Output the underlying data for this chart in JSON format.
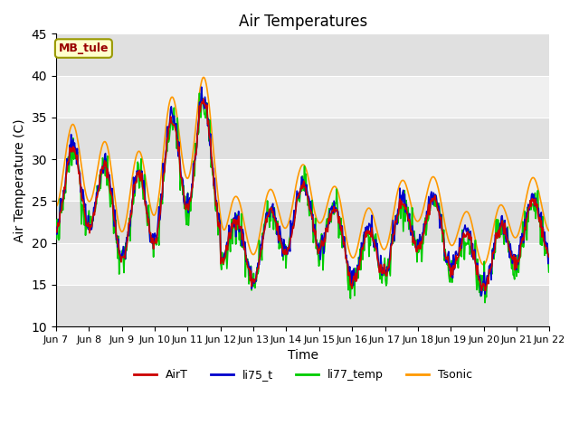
{
  "title": "Air Temperatures",
  "xlabel": "Time",
  "ylabel": "Air Temperature (C)",
  "ylim": [
    10,
    45
  ],
  "annotation_text": "MB_tule",
  "annotation_box_color": "#ffffcc",
  "annotation_text_color": "#990000",
  "annotation_border_color": "#999900",
  "series_colors": {
    "AirT": "#cc0000",
    "li75_t": "#0000cc",
    "li77_temp": "#00cc00",
    "Tsonic": "#ff9900"
  },
  "x_tick_labels": [
    "Jun 7",
    "Jun 8",
    "Jun 9",
    "Jun 10",
    "Jun 11",
    "Jun 12",
    "Jun 13",
    "Jun 14",
    "Jun 15",
    "Jun 16",
    "Jun 17",
    "Jun 18",
    "Jun 19",
    "Jun 20",
    "Jun 21",
    "Jun 22"
  ],
  "bg_color": "#e8e8e8",
  "band_color_light": "#f0f0f0",
  "band_color_dark": "#e0e0e0",
  "grid_color": "white",
  "line_width": 1.2,
  "legend_entries": [
    "AirT",
    "li75_t",
    "li77_temp",
    "Tsonic"
  ],
  "yticks": [
    10,
    15,
    20,
    25,
    30,
    35,
    40,
    45
  ]
}
